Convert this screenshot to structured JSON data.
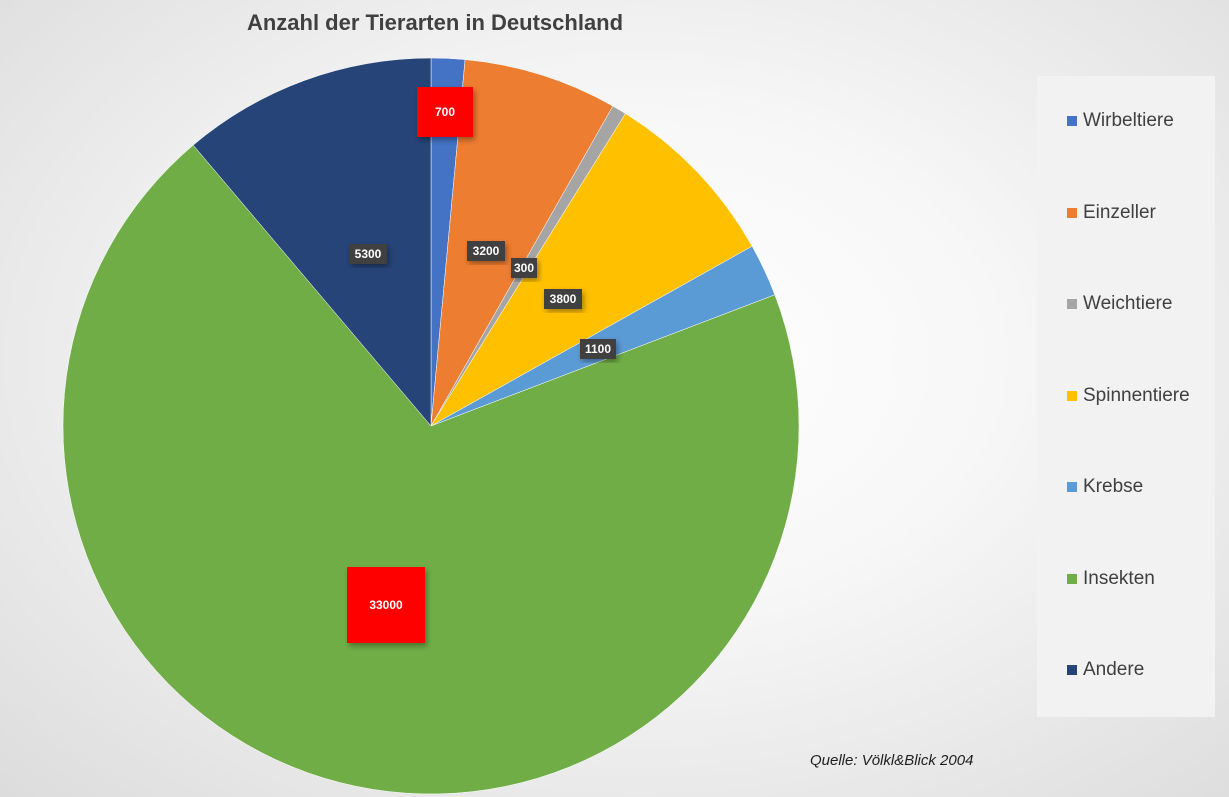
{
  "chart_data": {
    "type": "pie",
    "title": "Anzahl der Tierarten in Deutschland",
    "categories": [
      "Wirbeltiere",
      "Einzeller",
      "Weichtiere",
      "Spinnentiere",
      "Krebse",
      "Insekten",
      "Andere"
    ],
    "values": [
      700,
      3200,
      300,
      3800,
      1100,
      33000,
      5300
    ],
    "data_labels": [
      "700",
      "3200",
      "300",
      "3800",
      "1100",
      "33000",
      "5300"
    ],
    "highlighted_labels": [
      "700",
      "33000"
    ],
    "colors": [
      "#4472c4",
      "#ed7d31",
      "#a5a5a5",
      "#ffc000",
      "#5b9bd5",
      "#70ad47",
      "#264478"
    ],
    "label_colors": {
      "normal": "#404040",
      "highlight": "#ff0000"
    },
    "legend_position": "right",
    "start_angle": "12 o'clock, clockwise"
  },
  "source_note": "Quelle: Völkl&Blick 2004"
}
